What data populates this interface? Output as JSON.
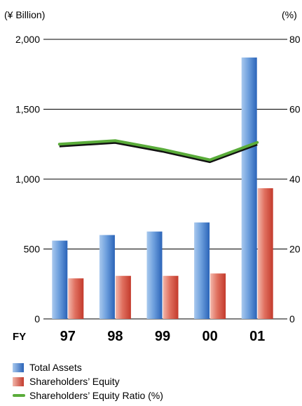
{
  "chart_data": {
    "type": "bar",
    "left_unit_label": "(¥ Billion)",
    "right_unit_label": "(%)",
    "x_prefix_label": "FY",
    "categories": [
      "97",
      "98",
      "99",
      "00",
      "01"
    ],
    "left_axis": {
      "ylim": [
        0,
        2000
      ],
      "ticks": [
        "0",
        "500",
        "1,000",
        "1,500",
        "2,000"
      ],
      "tick_values": [
        0,
        500,
        1000,
        1500,
        2000
      ]
    },
    "right_axis": {
      "ylim": [
        0,
        80
      ],
      "ticks": [
        "0",
        "20",
        "40",
        "60",
        "80"
      ],
      "tick_values": [
        0,
        20,
        40,
        60,
        80
      ]
    },
    "grid": true,
    "legend_position": "bottom-left",
    "series": [
      {
        "name": "Total Assets",
        "type": "bar",
        "axis": "left",
        "color": "#3a78c8",
        "values": [
          560,
          600,
          625,
          690,
          1870
        ]
      },
      {
        "name": "Shareholders’ Equity",
        "type": "bar",
        "axis": "left",
        "color": "#d8483a",
        "values": [
          290,
          308,
          308,
          325,
          935
        ]
      },
      {
        "name": "Shareholders’ Equity Ratio (%)",
        "type": "line",
        "axis": "right",
        "color": "#5aac3a",
        "values": [
          50,
          51,
          48.5,
          45.5,
          50.5
        ]
      }
    ]
  }
}
